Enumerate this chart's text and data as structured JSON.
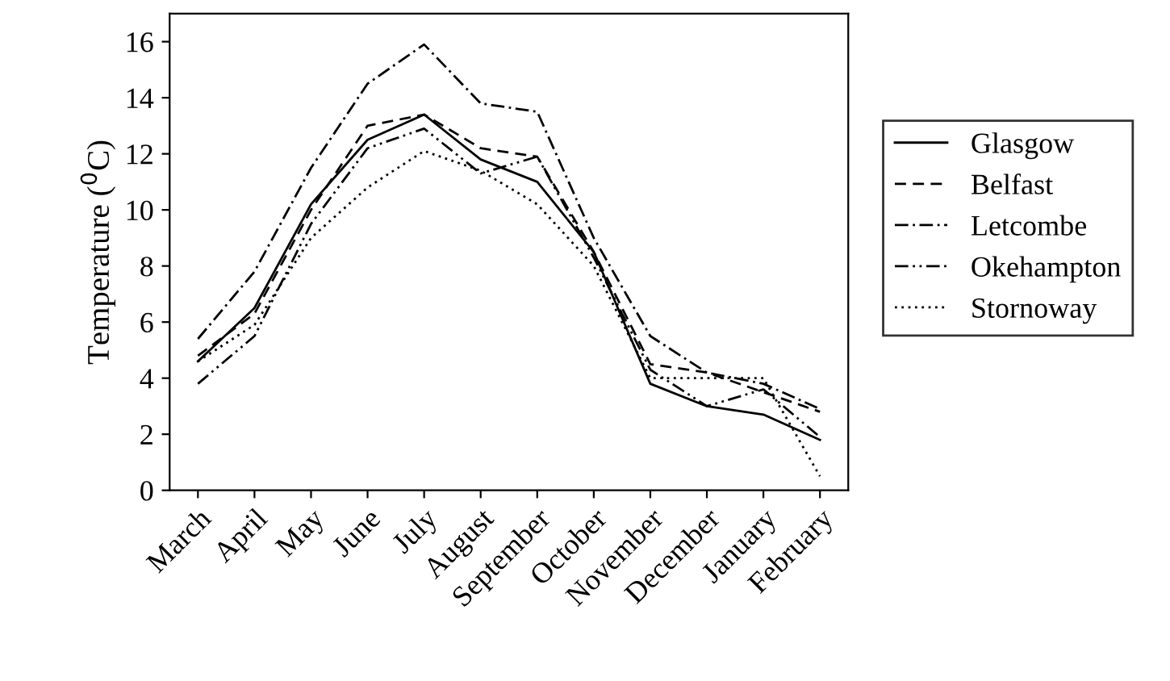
{
  "chart_data": {
    "type": "line",
    "ylabel": "Temperature ($^{0}$C)",
    "categories": [
      "March",
      "April",
      "May",
      "June",
      "July",
      "August",
      "September",
      "October",
      "November",
      "December",
      "January",
      "February"
    ],
    "series": [
      {
        "name": "Glasgow",
        "color": "#000000",
        "line_style": "solid",
        "values": [
          4.6,
          6.5,
          10.2,
          12.5,
          13.4,
          11.8,
          11.0,
          8.5,
          3.8,
          3.0,
          2.7,
          1.8
        ]
      },
      {
        "name": "Belfast",
        "color": "#000000",
        "line_style": "dashed",
        "values": [
          4.8,
          6.3,
          10.0,
          13.0,
          13.4,
          12.2,
          11.9,
          8.5,
          4.5,
          4.2,
          3.5,
          2.8
        ]
      },
      {
        "name": "Letcombe",
        "color": "#000000",
        "line_style": "dashdot",
        "values": [
          5.4,
          7.8,
          11.5,
          14.5,
          15.9,
          13.8,
          13.5,
          9.0,
          5.5,
          4.2,
          3.8,
          2.9
        ]
      },
      {
        "name": "Okehampton",
        "color": "#000000",
        "line_style": "dashdotdot",
        "values": [
          3.8,
          5.5,
          9.5,
          12.2,
          12.9,
          11.3,
          11.9,
          8.3,
          4.3,
          3.0,
          3.6,
          1.9
        ]
      },
      {
        "name": "Stornoway",
        "color": "#000000",
        "line_style": "dotted",
        "values": [
          4.6,
          5.9,
          9.0,
          10.8,
          12.1,
          11.4,
          10.2,
          8.0,
          4.0,
          4.0,
          4.0,
          0.5
        ]
      }
    ],
    "ylim": [
      0,
      17
    ],
    "yticks": [
      0,
      2,
      4,
      6,
      8,
      10,
      12,
      14,
      16
    ],
    "grid": false,
    "legend": "right",
    "marker": "none"
  }
}
